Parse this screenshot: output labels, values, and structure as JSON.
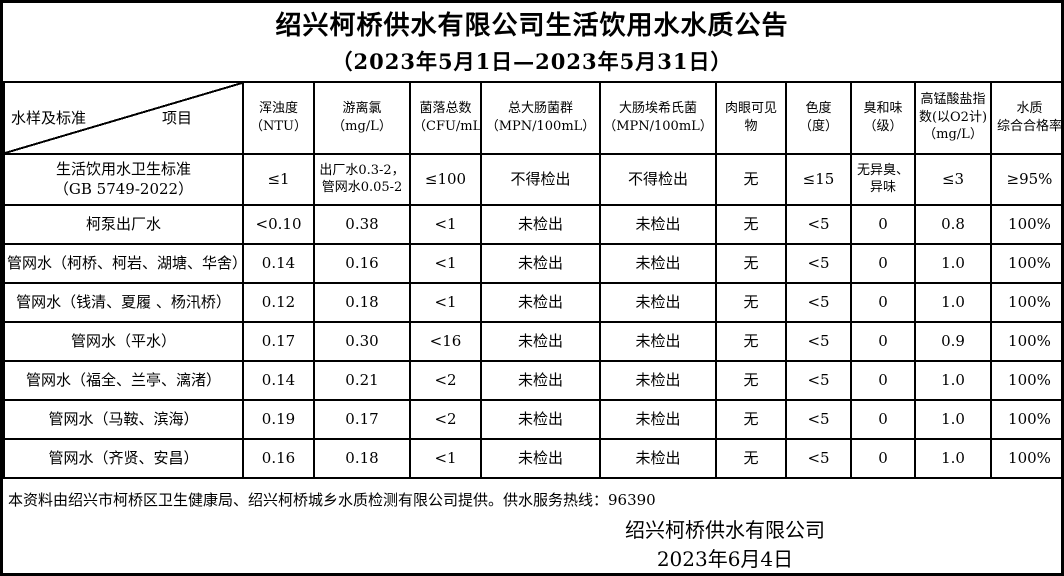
{
  "title": "绍兴柯桥供水有限公司生活饮用水水质公告",
  "subtitle": "（2023年5月1日—2023年5月31日）",
  "table": {
    "corner": {
      "bottom_left": "水样及标准",
      "top_right": "项目"
    },
    "columns": [
      "浑浊度\n（NTU）",
      "游离氯（mg/L）",
      "菌落总数\n（CFU/mL）",
      "总大肠菌群\n（MPN/100mL）",
      "大肠埃希氏菌\n（MPN/100mL）",
      "肉眼可见物",
      "色度\n（度）",
      "臭和味\n（级）",
      "高锰酸盐指数(以O2计)（mg/L）",
      "水质\n综合合格率"
    ],
    "rows": [
      {
        "label": "生活饮用水卫生标准\n（GB 5749-2022）",
        "values": [
          "≤1",
          "出厂水0.3-2，\n管网水0.05-2",
          "≤100",
          "不得检出",
          "不得检出",
          "无",
          "≤15",
          "无异臭、\n异味",
          "≤3",
          "≥95%"
        ]
      },
      {
        "label": "柯泵出厂水",
        "values": [
          "<0.10",
          "0.38",
          "<1",
          "未检出",
          "未检出",
          "无",
          "<5",
          "0",
          "0.8",
          "100%"
        ]
      },
      {
        "label": "管网水（柯桥、柯岩、湖塘、华舍）",
        "values": [
          "0.14",
          "0.16",
          "<1",
          "未检出",
          "未检出",
          "无",
          "<5",
          "0",
          "1.0",
          "100%"
        ]
      },
      {
        "label": "管网水（钱清、夏履 、杨汛桥）",
        "values": [
          "0.12",
          "0.18",
          "<1",
          "未检出",
          "未检出",
          "无",
          "<5",
          "0",
          "1.0",
          "100%"
        ]
      },
      {
        "label": "管网水（平水）",
        "values": [
          "0.17",
          "0.30",
          "<16",
          "未检出",
          "未检出",
          "无",
          "<5",
          "0",
          "0.9",
          "100%"
        ]
      },
      {
        "label": "管网水（福全、兰亭、漓渚）",
        "values": [
          "0.14",
          "0.21",
          "<2",
          "未检出",
          "未检出",
          "无",
          "<5",
          "0",
          "1.0",
          "100%"
        ]
      },
      {
        "label": "管网水（马鞍、滨海）",
        "values": [
          "0.19",
          "0.17",
          "<2",
          "未检出",
          "未检出",
          "无",
          "<5",
          "0",
          "1.0",
          "100%"
        ]
      },
      {
        "label": "管网水（齐贤、安昌）",
        "values": [
          "0.16",
          "0.18",
          "<1",
          "未检出",
          "未检出",
          "无",
          "<5",
          "0",
          "1.0",
          "100%"
        ]
      }
    ]
  },
  "footer": {
    "note": "本资料由绍兴市柯桥区卫生健康局、绍兴柯桥城乡水质检测有限公司提供。供水服务热线：96390",
    "company": "绍兴柯桥供水有限公司",
    "date": "2023年6月4日"
  }
}
